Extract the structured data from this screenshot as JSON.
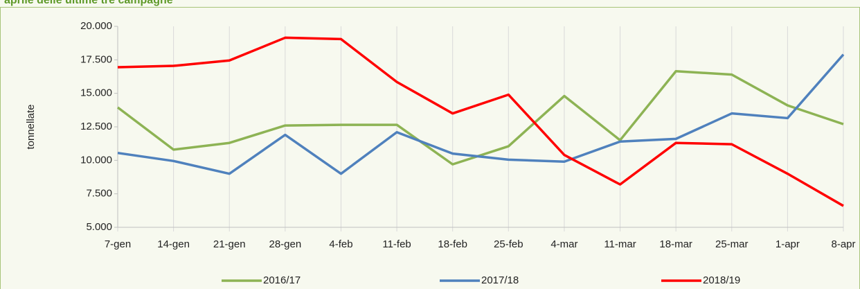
{
  "chart_data": {
    "type": "line",
    "title": "aprile delle ultime tre campagne",
    "ylabel": "tonnellate",
    "categories": [
      "7-gen",
      "14-gen",
      "21-gen",
      "28-gen",
      "4-feb",
      "11-feb",
      "18-feb",
      "25-feb",
      "4-mar",
      "11-mar",
      "18-mar",
      "25-mar",
      "1-apr",
      "8-apr"
    ],
    "series": [
      {
        "name": "2016/17",
        "color": "#8db354",
        "values": [
          13950,
          10800,
          11300,
          12600,
          12650,
          12650,
          9700,
          11050,
          14800,
          11500,
          16650,
          16400,
          14100,
          12700
        ]
      },
      {
        "name": "2017/18",
        "color": "#4f81bd",
        "values": [
          10550,
          9950,
          9000,
          11900,
          9000,
          12100,
          10500,
          10050,
          9900,
          11400,
          11600,
          13500,
          13150,
          17900
        ]
      },
      {
        "name": "2018/19",
        "color": "#ff0000",
        "values": [
          16950,
          17050,
          17450,
          19150,
          19050,
          15850,
          13500,
          14900,
          10400,
          8200,
          11300,
          11200,
          9000,
          6600
        ]
      }
    ],
    "ylim": [
      5000,
      20000
    ],
    "yticks": [
      {
        "value": 5000,
        "label": "5.000"
      },
      {
        "value": 7500,
        "label": "7.500"
      },
      {
        "value": 10000,
        "label": "10.000"
      },
      {
        "value": 12500,
        "label": "12.500"
      },
      {
        "value": 15000,
        "label": "15.000"
      },
      {
        "value": 17500,
        "label": "17.500"
      },
      {
        "value": 20000,
        "label": "20.000"
      }
    ],
    "xgrid": true,
    "legend": "bottom"
  }
}
